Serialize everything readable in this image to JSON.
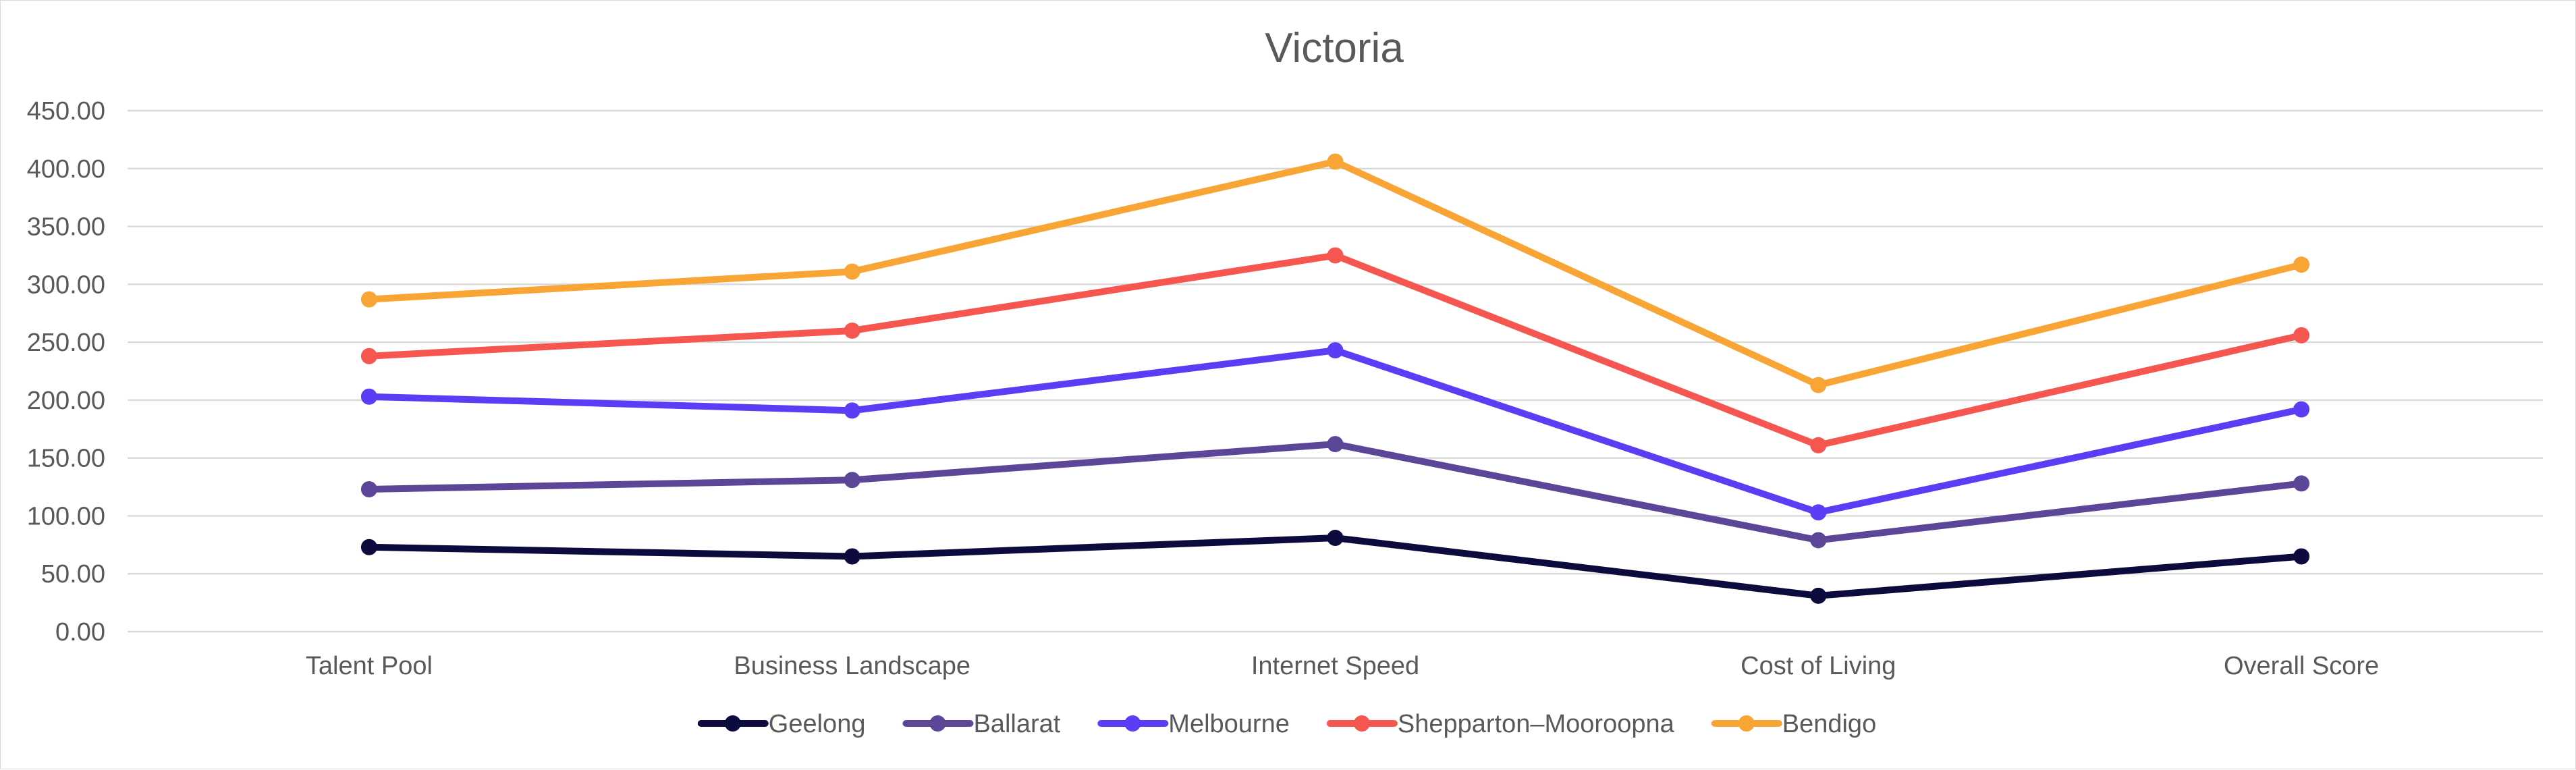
{
  "chart_data": {
    "type": "line",
    "title": "Victoria",
    "xlabel": "",
    "ylabel": "",
    "categories": [
      "Talent Pool",
      "Business Landscape",
      "Internet Speed",
      "Cost of Living",
      "Overall Score"
    ],
    "ylim": [
      0,
      450
    ],
    "yticks": [
      "0.00",
      "50.00",
      "100.00",
      "150.00",
      "200.00",
      "250.00",
      "300.00",
      "350.00",
      "400.00",
      "450.00"
    ],
    "grid": true,
    "legend_position": "bottom",
    "series": [
      {
        "name": "Geelong",
        "color": "#0d0a3d",
        "values": [
          73,
          65,
          81,
          31,
          65
        ]
      },
      {
        "name": "Ballarat",
        "color": "#5b4698",
        "values": [
          123,
          131,
          162,
          79,
          128
        ]
      },
      {
        "name": "Melbourne",
        "color": "#5a3df5",
        "values": [
          203,
          191,
          243,
          103,
          192
        ]
      },
      {
        "name": "Shepparton–Mooroopna",
        "color": "#f55650",
        "values": [
          238,
          260,
          325,
          161,
          256
        ]
      },
      {
        "name": "Bendigo",
        "color": "#f8a536",
        "values": [
          287,
          311,
          406,
          213,
          317
        ]
      }
    ]
  }
}
